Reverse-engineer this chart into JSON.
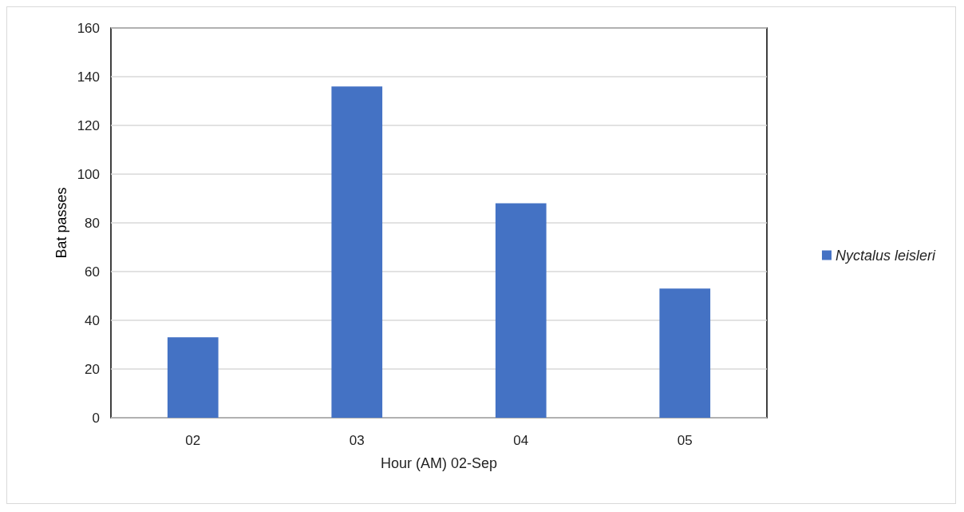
{
  "chart_data": {
    "type": "bar",
    "xlabel": "Hour (AM) 02-Sep",
    "ylabel": "Bat passes",
    "categories": [
      "02",
      "03",
      "04",
      "05"
    ],
    "series": [
      {
        "name": "Nyctalus leisleri",
        "color": "#4472c4",
        "values": [
          33,
          136,
          88,
          53
        ]
      }
    ],
    "ylim": [
      0,
      160
    ],
    "yticks": [
      0,
      20,
      40,
      60,
      80,
      100,
      120,
      140,
      160
    ],
    "grid": "y",
    "legend": "right"
  }
}
